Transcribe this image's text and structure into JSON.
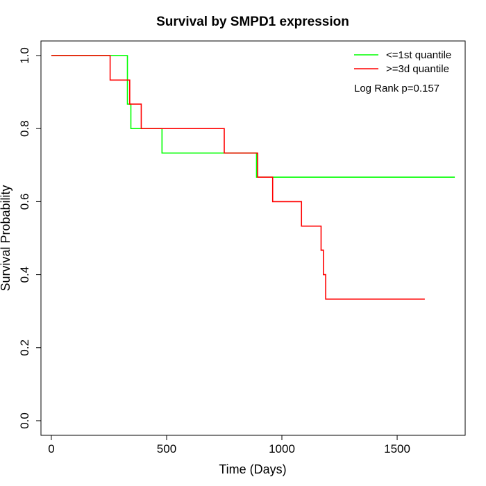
{
  "chart_data": {
    "type": "line",
    "title": "Survival by SMPD1 expression",
    "xlabel": "Time (Days)",
    "ylabel": "Survival Probability",
    "xlim": [
      -45,
      1795
    ],
    "ylim": [
      -0.04,
      1.04
    ],
    "x_ticks": [
      0,
      500,
      1000,
      1500
    ],
    "x_tick_labels": [
      "0",
      "500",
      "1000",
      "1500"
    ],
    "y_ticks": [
      0.0,
      0.2,
      0.4,
      0.6,
      0.8,
      1.0
    ],
    "y_tick_labels": [
      "0.0",
      "0.2",
      "0.4",
      "0.6",
      "0.8",
      "1.0"
    ],
    "grid": false,
    "legend_position": "top-right",
    "annotation": "Log Rank p=0.157",
    "series": [
      {
        "name": "<=1st quantile",
        "color": "#00ff00",
        "step": true,
        "x": [
          0,
          330,
          345,
          480,
          890,
          1750
        ],
        "y": [
          1.0,
          0.867,
          0.8,
          0.733,
          0.667,
          0.667
        ]
      },
      {
        "name": ">=3d quantile",
        "color": "#ff0000",
        "step": true,
        "x": [
          0,
          255,
          340,
          390,
          750,
          895,
          960,
          1085,
          1170,
          1180,
          1190,
          1620
        ],
        "y": [
          1.0,
          0.933,
          0.867,
          0.8,
          0.733,
          0.667,
          0.6,
          0.533,
          0.467,
          0.4,
          0.333,
          0.333
        ]
      }
    ]
  }
}
